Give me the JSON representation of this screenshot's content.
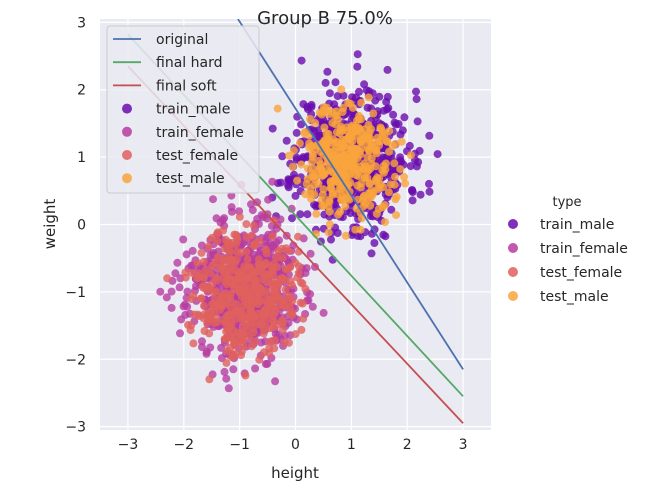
{
  "chart_data": {
    "type": "scatter",
    "title": "Group B 75.0%",
    "xlabel": "height",
    "ylabel": "weight",
    "xlim": [
      -3.5,
      3.5
    ],
    "ylim": [
      -3.05,
      3.05
    ],
    "xticks": [
      -3,
      -2,
      -1,
      0,
      1,
      2,
      3
    ],
    "yticks": [
      -3,
      -2,
      -1,
      0,
      1,
      2,
      3
    ],
    "grid": true,
    "background_color": "#EAEAF2",
    "lines": [
      {
        "name": "original",
        "color": "#4C72B0",
        "x": [
          -1.03,
          3.0
        ],
        "y": [
          3.05,
          -2.15
        ]
      },
      {
        "name": "final hard",
        "color": "#55A868",
        "x": [
          -3.0,
          3.0
        ],
        "y": [
          2.82,
          -2.55
        ]
      },
      {
        "name": "final soft",
        "color": "#C44E52",
        "x": [
          -3.0,
          3.0
        ],
        "y": [
          2.35,
          -2.95
        ]
      }
    ],
    "clusters": [
      {
        "name": "train_male",
        "color": "#6A0DAD",
        "center": [
          1.0,
          0.98
        ],
        "spread": [
          0.5,
          0.5
        ],
        "n": 650,
        "seed": 11
      },
      {
        "name": "train_female",
        "color": "#B73CA0",
        "center": [
          -0.95,
          -0.95
        ],
        "spread": [
          0.5,
          0.5
        ],
        "n": 650,
        "seed": 23
      },
      {
        "name": "test_female",
        "color": "#E0605E",
        "center": [
          -0.9,
          -0.98
        ],
        "spread": [
          0.45,
          0.45
        ],
        "n": 420,
        "seed": 37
      },
      {
        "name": "test_male",
        "color": "#F9A43C",
        "center": [
          0.95,
          0.9
        ],
        "spread": [
          0.42,
          0.42
        ],
        "n": 380,
        "seed": 51
      }
    ],
    "inner_legend": {
      "placement": "upper-left",
      "entries": [
        {
          "kind": "line",
          "label": "original",
          "color": "#4C72B0"
        },
        {
          "kind": "line",
          "label": "final hard",
          "color": "#55A868"
        },
        {
          "kind": "line",
          "label": "final soft",
          "color": "#C44E52"
        },
        {
          "kind": "point",
          "label": "train_male",
          "color": "#6A0DAD"
        },
        {
          "kind": "point",
          "label": "train_female",
          "color": "#B73CA0"
        },
        {
          "kind": "point",
          "label": "test_female",
          "color": "#E0605E"
        },
        {
          "kind": "point",
          "label": "test_male",
          "color": "#F9A43C"
        }
      ]
    },
    "outer_legend": {
      "placement": "right",
      "title": "type",
      "entries": [
        {
          "label": "train_male",
          "color": "#6A0DAD"
        },
        {
          "label": "train_female",
          "color": "#B73CA0"
        },
        {
          "label": "test_female",
          "color": "#E0605E"
        },
        {
          "label": "test_male",
          "color": "#F9A43C"
        }
      ]
    }
  }
}
